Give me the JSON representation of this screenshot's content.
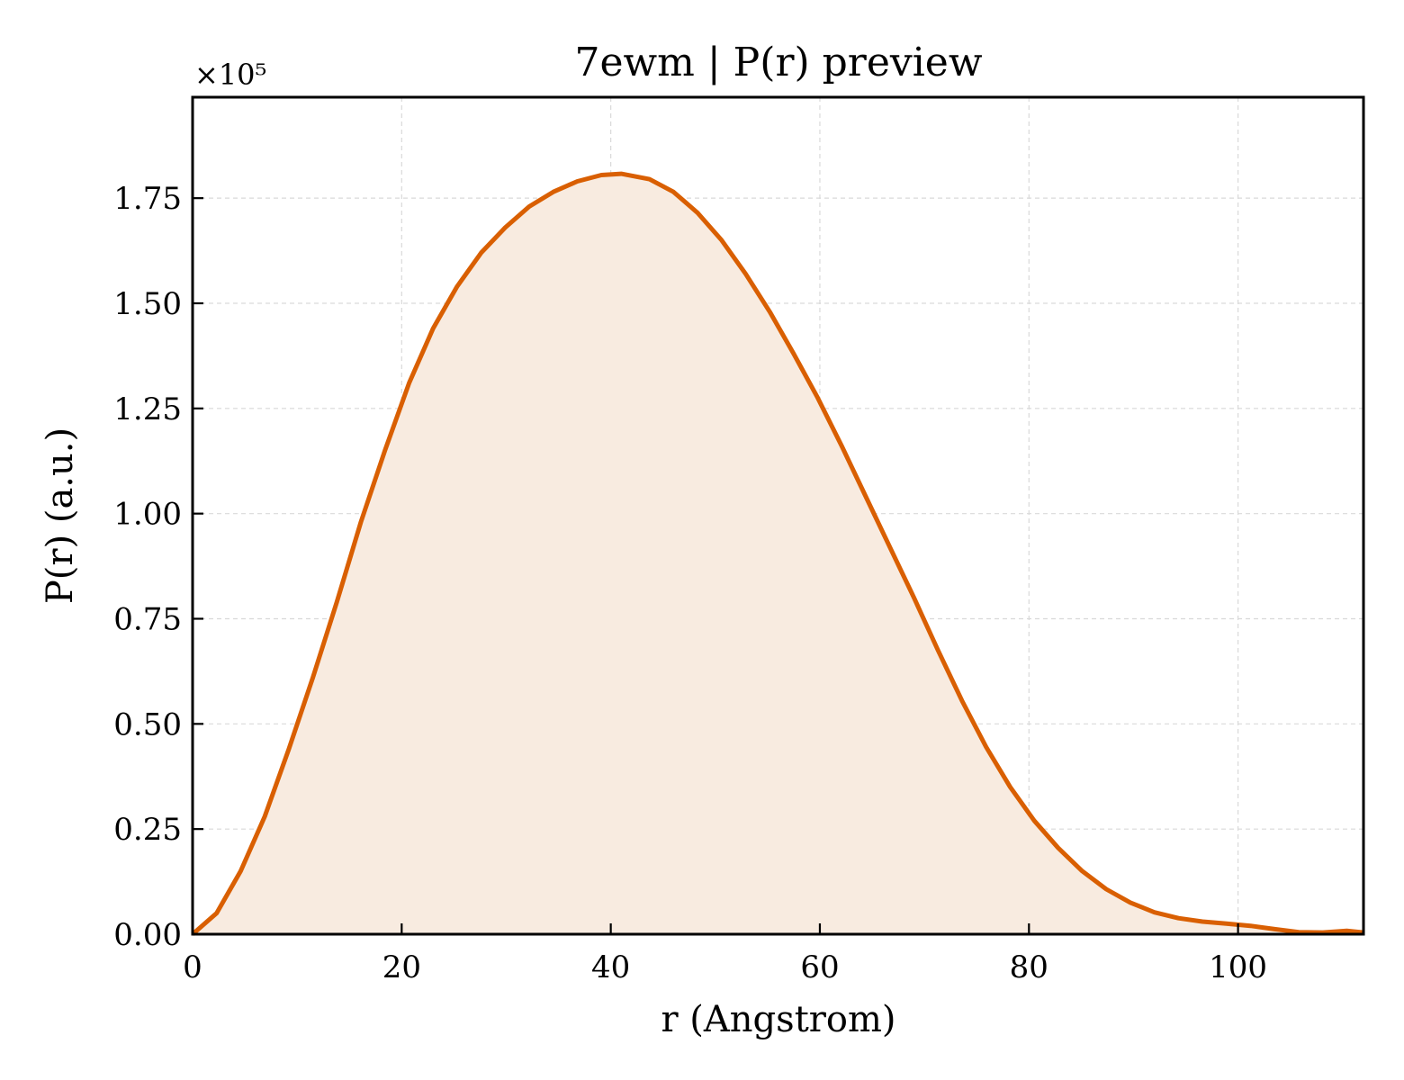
{
  "chart_data": {
    "type": "area",
    "title": "7ewm | P(r) preview",
    "xlabel": "r (Angstrom)",
    "ylabel": "P(r) (a.u.)",
    "y_offset_label": "×10⁵",
    "y_scale": 100000,
    "xlim": [
      0,
      112
    ],
    "ylim": [
      0,
      1.99
    ],
    "x_ticks": [
      0,
      20,
      40,
      60,
      80,
      100
    ],
    "y_ticks": [
      0.0,
      0.25,
      0.5,
      0.75,
      1.0,
      1.25,
      1.5,
      1.75
    ],
    "x_tick_labels": [
      "0",
      "20",
      "40",
      "60",
      "80",
      "100"
    ],
    "y_tick_labels": [
      "0.00",
      "0.25",
      "0.50",
      "0.75",
      "1.00",
      "1.25",
      "1.50",
      "1.75"
    ],
    "grid": true,
    "series": [
      {
        "color": "#d95f02",
        "fill_color": "#f8ebe0",
        "x": [
          0,
          2.3,
          4.6,
          6.9,
          9.2,
          11.5,
          13.8,
          16.1,
          18.4,
          20.7,
          23.0,
          25.3,
          27.6,
          29.9,
          32.2,
          34.5,
          36.8,
          39.1,
          41.0,
          43.7,
          46.0,
          48.3,
          50.6,
          52.9,
          55.2,
          57.5,
          59.8,
          62.1,
          64.4,
          66.7,
          69.0,
          71.3,
          73.6,
          75.9,
          78.2,
          80.5,
          82.8,
          85.1,
          87.4,
          89.7,
          92.0,
          94.3,
          96.6,
          98.9,
          101.2,
          103.5,
          105.8,
          108.1,
          110.4,
          112.0
        ],
        "y": [
          0.0,
          0.05,
          0.15,
          0.28,
          0.44,
          0.61,
          0.79,
          0.98,
          1.15,
          1.31,
          1.44,
          1.54,
          1.62,
          1.68,
          1.73,
          1.765,
          1.79,
          1.805,
          1.808,
          1.795,
          1.765,
          1.715,
          1.65,
          1.57,
          1.48,
          1.38,
          1.275,
          1.16,
          1.04,
          0.92,
          0.8,
          0.675,
          0.555,
          0.445,
          0.35,
          0.27,
          0.205,
          0.15,
          0.107,
          0.075,
          0.052,
          0.038,
          0.03,
          0.025,
          0.02,
          0.012,
          0.005,
          0.004,
          0.008,
          0.004
        ]
      }
    ]
  }
}
